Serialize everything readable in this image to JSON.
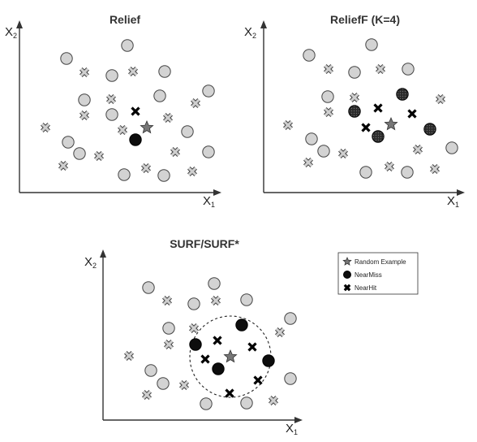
{
  "panels": [
    {
      "id": "relief",
      "title": "Relief",
      "xlabel": "X",
      "xsub": "1",
      "ylabel": "X",
      "ysub": "2"
    },
    {
      "id": "relieff",
      "title": "ReliefF (K=4)",
      "xlabel": "X",
      "xsub": "1",
      "ylabel": "X",
      "ysub": "2"
    },
    {
      "id": "surf",
      "title": "SURF/SURF*",
      "xlabel": "X",
      "xsub": "1",
      "ylabel": "X",
      "ysub": "2"
    }
  ],
  "legend": {
    "items": [
      {
        "label": "Random Example",
        "icon": "star-icon"
      },
      {
        "label": "NearMiss",
        "icon": "dark-circle-icon"
      },
      {
        "label": "NearHit",
        "icon": "bold-cross-icon"
      }
    ]
  },
  "colors": {
    "gray_circle": "#d3d3d3",
    "gray_cross": "#cfcfcf",
    "near_miss": "#0d0d0d",
    "near_miss_dotted": "#3a3a3a",
    "near_hit": "#000000",
    "star": "#777777",
    "axis": "#333333"
  }
}
